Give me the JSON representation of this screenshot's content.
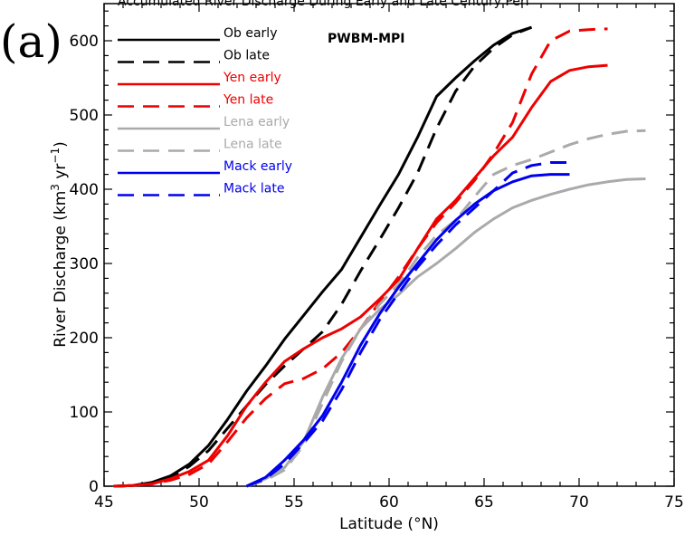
{
  "header": {
    "title": "Accumulated River Discharge During Early and Late Century Peri",
    "panel_label": "(a)"
  },
  "chart_data": {
    "type": "line",
    "annotation": "PWBM-MPI",
    "xlabel": "Latitude (°N)",
    "ylabel_main": "River Discharge (km",
    "ylabel_sup1": "3",
    "ylabel_mid": " yr",
    "ylabel_sup2": "−1",
    "ylabel_end": ")",
    "xlim": [
      45,
      75
    ],
    "ylim": [
      0,
      650
    ],
    "xticks": [
      45,
      50,
      55,
      60,
      65,
      70,
      75
    ],
    "yticks": [
      0,
      100,
      200,
      300,
      400,
      500,
      600
    ],
    "grid": false,
    "legend_position": "top-left",
    "series": [
      {
        "name": "Ob early",
        "color": "#000000",
        "dash": "solid",
        "points": [
          [
            45.5,
            0
          ],
          [
            46.5,
            1
          ],
          [
            47.5,
            5
          ],
          [
            48.5,
            14
          ],
          [
            49.5,
            30
          ],
          [
            50.5,
            55
          ],
          [
            51.5,
            90
          ],
          [
            52.5,
            128
          ],
          [
            53.5,
            162
          ],
          [
            54.5,
            198
          ],
          [
            55.5,
            230
          ],
          [
            56.5,
            262
          ],
          [
            57.5,
            292
          ],
          [
            58.5,
            335
          ],
          [
            59.5,
            378
          ],
          [
            60.5,
            420
          ],
          [
            61.5,
            470
          ],
          [
            62.5,
            525
          ],
          [
            63.5,
            550
          ],
          [
            64.5,
            573
          ],
          [
            65.5,
            594
          ],
          [
            66.5,
            610
          ],
          [
            67.5,
            618
          ]
        ]
      },
      {
        "name": "Ob late",
        "color": "#000000",
        "dash": "dashed",
        "points": [
          [
            45.5,
            0
          ],
          [
            46.5,
            1
          ],
          [
            47.5,
            4
          ],
          [
            48.5,
            12
          ],
          [
            49.5,
            27
          ],
          [
            50.5,
            48
          ],
          [
            51.5,
            78
          ],
          [
            52.5,
            108
          ],
          [
            53.5,
            137
          ],
          [
            54.5,
            162
          ],
          [
            55.5,
            185
          ],
          [
            56.5,
            208
          ],
          [
            57.5,
            245
          ],
          [
            58.5,
            290
          ],
          [
            59.5,
            332
          ],
          [
            60.5,
            375
          ],
          [
            61.5,
            422
          ],
          [
            62.5,
            482
          ],
          [
            63.5,
            532
          ],
          [
            64.5,
            566
          ],
          [
            65.5,
            590
          ],
          [
            66.5,
            608
          ],
          [
            67.5,
            618
          ]
        ]
      },
      {
        "name": "Yen early",
        "color": "#ee0000",
        "dash": "solid",
        "points": [
          [
            45.5,
            0
          ],
          [
            46.5,
            1
          ],
          [
            47.5,
            3
          ],
          [
            48.5,
            10
          ],
          [
            49.5,
            20
          ],
          [
            50.5,
            35
          ],
          [
            51.5,
            68
          ],
          [
            52.5,
            108
          ],
          [
            53.5,
            140
          ],
          [
            54.5,
            168
          ],
          [
            55.5,
            185
          ],
          [
            56.5,
            200
          ],
          [
            57.5,
            212
          ],
          [
            58.5,
            228
          ],
          [
            59.5,
            252
          ],
          [
            60.5,
            278
          ],
          [
            61.5,
            320
          ],
          [
            62.5,
            360
          ],
          [
            63.5,
            385
          ],
          [
            64.5,
            415
          ],
          [
            65.5,
            445
          ],
          [
            66.5,
            470
          ],
          [
            67.5,
            510
          ],
          [
            68.5,
            545
          ],
          [
            69.5,
            560
          ],
          [
            70.5,
            565
          ],
          [
            71.5,
            567
          ]
        ]
      },
      {
        "name": "Yen late",
        "color": "#ee0000",
        "dash": "dashed",
        "points": [
          [
            45.5,
            0
          ],
          [
            46.5,
            1
          ],
          [
            47.5,
            3
          ],
          [
            48.5,
            8
          ],
          [
            49.5,
            16
          ],
          [
            50.5,
            30
          ],
          [
            51.5,
            60
          ],
          [
            52.5,
            92
          ],
          [
            53.5,
            118
          ],
          [
            54.5,
            138
          ],
          [
            55.5,
            145
          ],
          [
            56.5,
            158
          ],
          [
            57.5,
            180
          ],
          [
            58.5,
            212
          ],
          [
            59.5,
            248
          ],
          [
            60.5,
            282
          ],
          [
            61.5,
            320
          ],
          [
            62.5,
            355
          ],
          [
            63.5,
            382
          ],
          [
            64.5,
            412
          ],
          [
            65.5,
            448
          ],
          [
            66.5,
            490
          ],
          [
            67.5,
            555
          ],
          [
            68.5,
            600
          ],
          [
            69.5,
            613
          ],
          [
            70.5,
            615
          ],
          [
            71.5,
            616
          ]
        ]
      },
      {
        "name": "Lena early",
        "color": "#aaaaaa",
        "dash": "solid",
        "points": [
          [
            52.5,
            0
          ],
          [
            53.5,
            10
          ],
          [
            54.5,
            25
          ],
          [
            55.5,
            60
          ],
          [
            56.5,
            120
          ],
          [
            57.5,
            172
          ],
          [
            58.5,
            212
          ],
          [
            59.5,
            238
          ],
          [
            60.5,
            258
          ],
          [
            61.5,
            282
          ],
          [
            62.5,
            300
          ],
          [
            63.5,
            320
          ],
          [
            64.5,
            342
          ],
          [
            65.5,
            360
          ],
          [
            66.5,
            375
          ],
          [
            67.5,
            385
          ],
          [
            68.5,
            393
          ],
          [
            69.5,
            400
          ],
          [
            70.5,
            406
          ],
          [
            71.5,
            410
          ],
          [
            72.5,
            413
          ],
          [
            73.5,
            414
          ]
        ]
      },
      {
        "name": "Lena late",
        "color": "#aaaaaa",
        "dash": "dashed",
        "points": [
          [
            52.5,
            0
          ],
          [
            53.5,
            8
          ],
          [
            54.5,
            22
          ],
          [
            55.5,
            55
          ],
          [
            56.5,
            112
          ],
          [
            57.5,
            168
          ],
          [
            58.5,
            212
          ],
          [
            59.5,
            245
          ],
          [
            60.5,
            272
          ],
          [
            61.5,
            308
          ],
          [
            62.5,
            338
          ],
          [
            63.5,
            358
          ],
          [
            64.5,
            390
          ],
          [
            65.5,
            420
          ],
          [
            66.5,
            432
          ],
          [
            67.5,
            440
          ],
          [
            68.5,
            450
          ],
          [
            69.5,
            460
          ],
          [
            70.5,
            468
          ],
          [
            71.5,
            474
          ],
          [
            72.5,
            478
          ],
          [
            73.5,
            479
          ]
        ]
      },
      {
        "name": "Mack early",
        "color": "#0000ee",
        "dash": "solid",
        "points": [
          [
            52.5,
            0
          ],
          [
            53.5,
            12
          ],
          [
            54.5,
            35
          ],
          [
            55.5,
            62
          ],
          [
            56.5,
            95
          ],
          [
            57.5,
            140
          ],
          [
            58.5,
            190
          ],
          [
            59.5,
            232
          ],
          [
            60.5,
            268
          ],
          [
            61.5,
            300
          ],
          [
            62.5,
            332
          ],
          [
            63.5,
            358
          ],
          [
            64.5,
            380
          ],
          [
            65.5,
            398
          ],
          [
            66.5,
            410
          ],
          [
            67.5,
            418
          ],
          [
            68.5,
            420
          ],
          [
            69.5,
            420
          ]
        ]
      },
      {
        "name": "Mack late",
        "color": "#0000ee",
        "dash": "dashed",
        "points": [
          [
            52.5,
            0
          ],
          [
            53.5,
            10
          ],
          [
            54.5,
            30
          ],
          [
            55.5,
            58
          ],
          [
            56.5,
            88
          ],
          [
            57.5,
            130
          ],
          [
            58.5,
            180
          ],
          [
            59.5,
            224
          ],
          [
            60.5,
            260
          ],
          [
            61.5,
            295
          ],
          [
            62.5,
            325
          ],
          [
            63.5,
            352
          ],
          [
            64.5,
            375
          ],
          [
            65.5,
            398
          ],
          [
            66.5,
            422
          ],
          [
            67.5,
            432
          ],
          [
            68.5,
            436
          ],
          [
            69.5,
            436
          ]
        ]
      }
    ]
  }
}
